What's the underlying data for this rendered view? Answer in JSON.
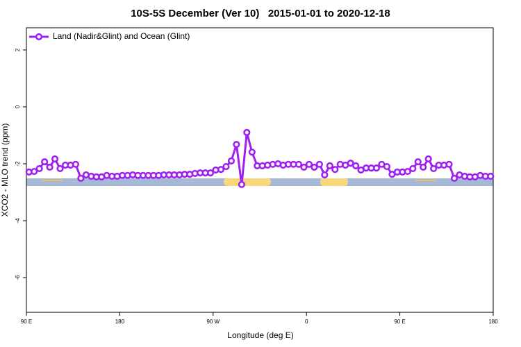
{
  "chart_data": {
    "type": "line",
    "title": "10S-5S December (Ver 10)   2015-01-01 to 2020-12-18",
    "x_label": "Longitude (deg E)",
    "y_label": "XCO2 - MLO trend (ppm)",
    "xlim": [
      90,
      540
    ],
    "xticks": [
      {
        "value": 90,
        "label": "90 E"
      },
      {
        "value": 180,
        "label": "180"
      },
      {
        "value": 270,
        "label": "90 W"
      },
      {
        "value": 360,
        "label": "0"
      },
      {
        "value": 450,
        "label": "90 E"
      },
      {
        "value": 540,
        "label": "180"
      }
    ],
    "ylim": [
      -7.22,
      2.78
    ],
    "yticks": [
      -6,
      -4,
      -2,
      0,
      2
    ],
    "legend": "top-left",
    "x": [
      92.5,
      97.5,
      102.5,
      107.5,
      112.5,
      117.5,
      122.5,
      127.5,
      132.5,
      137.5,
      142.5,
      147.5,
      152.5,
      157.5,
      162.5,
      167.5,
      172.5,
      177.5,
      182.5,
      187.5,
      192.5,
      197.5,
      202.5,
      207.5,
      212.5,
      217.5,
      222.5,
      227.5,
      232.5,
      237.5,
      242.5,
      247.5,
      252.5,
      257.5,
      262.5,
      267.5,
      272.5,
      277.5,
      282.5,
      287.5,
      292.5,
      297.5,
      302.5,
      307.5,
      312.5,
      317.5,
      322.5,
      327.5,
      332.5,
      337.5,
      342.5,
      347.5,
      352.5,
      357.5,
      362.5,
      367.5,
      372.5,
      377.5,
      382.5,
      387.5,
      392.5,
      397.5,
      402.5,
      407.5,
      412.5,
      417.5,
      422.5,
      427.5,
      432.5,
      437.5,
      442.5,
      447.5,
      452.5,
      457.5,
      462.5,
      467.5,
      472.5,
      477.5,
      482.5,
      487.5,
      492.5,
      497.5,
      502.5,
      507.5,
      512.5,
      517.5,
      522.5,
      527.5,
      532.5,
      537.5
    ],
    "series": [
      {
        "name": "Land (Nadir&Glint) and Ocean (Glint)",
        "color": "#a020f0",
        "values": [
          -2.29,
          -2.27,
          -2.17,
          -1.93,
          -2.12,
          -1.83,
          -2.17,
          -2.05,
          -2.05,
          -2.02,
          -2.51,
          -2.39,
          -2.44,
          -2.46,
          -2.46,
          -2.41,
          -2.44,
          -2.44,
          -2.41,
          -2.41,
          -2.39,
          -2.41,
          -2.41,
          -2.41,
          -2.41,
          -2.41,
          -2.39,
          -2.39,
          -2.39,
          -2.39,
          -2.37,
          -2.37,
          -2.34,
          -2.32,
          -2.32,
          -2.32,
          -2.22,
          -2.2,
          -2.1,
          -1.9,
          -1.32,
          -2.73,
          -0.9,
          -1.59,
          -2.07,
          -2.07,
          -2.05,
          -2.02,
          -2.0,
          -2.05,
          -2.02,
          -2.02,
          -2.02,
          -2.12,
          -2.02,
          -2.12,
          -2.02,
          -2.39,
          -2.07,
          -2.2,
          -2.02,
          -2.05,
          -1.98,
          -2.07,
          -2.22,
          -2.15,
          -2.15,
          -2.15,
          -2.02,
          -2.1,
          -2.37,
          -2.29,
          -2.29,
          -2.27,
          -2.17,
          -1.93,
          -2.12,
          -1.83,
          -2.17,
          -2.05,
          -2.05,
          -2.02,
          -2.51,
          -2.39,
          -2.44,
          -2.46,
          -2.46,
          -2.41,
          -2.44,
          -2.44
        ]
      }
    ]
  }
}
